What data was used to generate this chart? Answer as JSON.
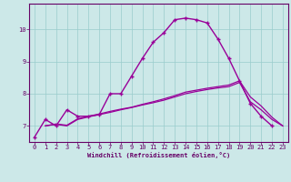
{
  "xlabel": "Windchill (Refroidissement éolien,°C)",
  "background_color": "#cce8e8",
  "line_color": "#990099",
  "grid_color": "#99cccc",
  "axis_color": "#660066",
  "text_color": "#660066",
  "xlim": [
    -0.5,
    23.5
  ],
  "ylim": [
    6.5,
    10.8
  ],
  "yticks": [
    7,
    8,
    9,
    10
  ],
  "xticks": [
    0,
    1,
    2,
    3,
    4,
    5,
    6,
    7,
    8,
    9,
    10,
    11,
    12,
    13,
    14,
    15,
    16,
    17,
    18,
    19,
    20,
    21,
    22,
    23
  ],
  "series": [
    {
      "x": [
        0,
        1,
        2,
        3,
        4,
        5,
        6,
        7,
        8,
        9,
        10,
        11,
        12,
        13,
        14,
        15,
        16,
        17,
        18,
        19,
        20,
        21,
        22
      ],
      "y": [
        6.65,
        7.2,
        7.0,
        7.5,
        7.3,
        7.3,
        7.35,
        8.0,
        8.0,
        8.55,
        9.1,
        9.6,
        9.9,
        10.3,
        10.35,
        10.3,
        10.2,
        9.7,
        9.1,
        8.4,
        7.7,
        7.3,
        7.0
      ],
      "marker": "+",
      "markersize": 3.5,
      "linewidth": 1.0
    },
    {
      "x": [
        1,
        2,
        3,
        4,
        5,
        6,
        7,
        8,
        9,
        10,
        11,
        12,
        13,
        14,
        15,
        16,
        17,
        18,
        19,
        20,
        21,
        22,
        23
      ],
      "y": [
        7.0,
        7.05,
        7.0,
        7.2,
        7.28,
        7.35,
        7.42,
        7.5,
        7.57,
        7.65,
        7.72,
        7.8,
        7.9,
        8.0,
        8.07,
        8.13,
        8.18,
        8.22,
        8.35,
        7.75,
        7.5,
        7.2,
        7.0
      ],
      "marker": null,
      "markersize": 0,
      "linewidth": 0.9
    },
    {
      "x": [
        1,
        2,
        3,
        4,
        5,
        6,
        7,
        8,
        9,
        10,
        11,
        12,
        13,
        14,
        15,
        16,
        17,
        18,
        19,
        20,
        21,
        22,
        23
      ],
      "y": [
        7.0,
        7.06,
        7.02,
        7.22,
        7.3,
        7.37,
        7.45,
        7.52,
        7.58,
        7.67,
        7.75,
        7.84,
        7.94,
        8.05,
        8.11,
        8.17,
        8.22,
        8.27,
        8.4,
        7.9,
        7.62,
        7.27,
        7.0
      ],
      "marker": null,
      "markersize": 0,
      "linewidth": 0.9
    }
  ]
}
